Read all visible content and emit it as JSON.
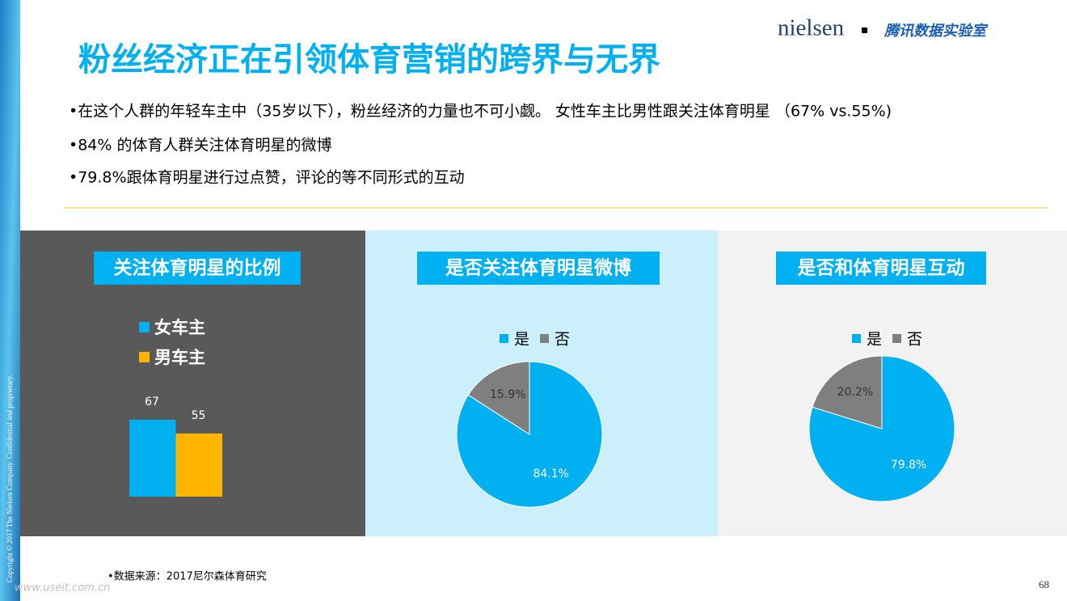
{
  "header": {
    "title": "粉丝经济正在引领体育营销的跨界与无界",
    "logo": "nielsen",
    "brand": "腾讯数据实验室"
  },
  "bullets": [
    "•在这个人群的年轻车主中（35岁以下），粉丝经济的力量也不可小觑。 女性车主比男性跟关注体育明星 （67% vs.55%)",
    "•84% 的体育人群关注体育明星的微博",
    "•79.8%跟体育明星进行过点赞，评论的等不同形式的互动"
  ],
  "chart_data": [
    {
      "type": "bar",
      "title": "关注体育明星的比例",
      "categories": [
        null
      ],
      "ylim": [
        0,
        100
      ],
      "series": [
        {
          "name": "女车主",
          "color": "#00b0f0",
          "values": [
            67
          ]
        },
        {
          "name": "男车主",
          "color": "#ffb400",
          "values": [
            55
          ]
        }
      ]
    },
    {
      "type": "pie",
      "title": "是否关注体育明星微博",
      "categories": [
        "是",
        "否"
      ],
      "values": [
        84.1,
        15.9
      ],
      "value_labels": [
        "84.1%",
        "15.9%"
      ],
      "colors": [
        "#00b0f0",
        "#7f7f7f"
      ]
    },
    {
      "type": "pie",
      "title": "是否和体育明星互动",
      "categories": [
        "是",
        "否"
      ],
      "values": [
        79.8,
        20.2
      ],
      "value_labels": [
        "79.8%",
        "20.2%"
      ],
      "colors": [
        "#00b0f0",
        "#7f7f7f"
      ]
    }
  ],
  "source": "•数据来源：2017尼尔森体育研究",
  "page_number": "68",
  "copyright": "Copyright © 2017 The Nielsen Company. Confidential and proprietary.",
  "watermark": "www.useit.com.cn"
}
